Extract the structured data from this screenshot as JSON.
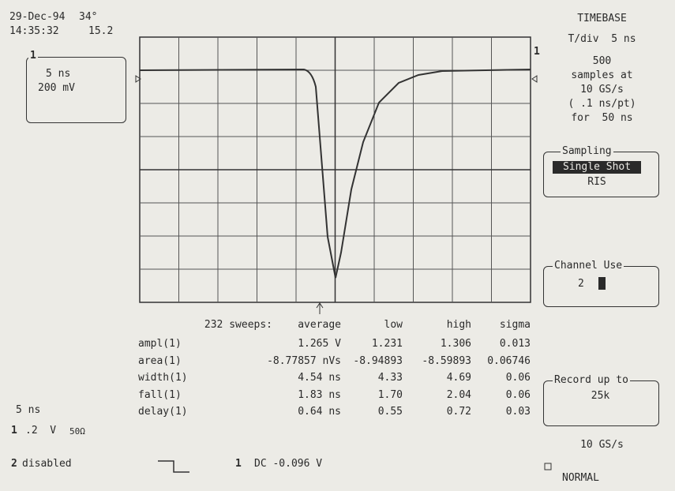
{
  "status": {
    "date": "29-Dec-94",
    "temp": "34°",
    "time": "14:35:32",
    "temp2": "15.2"
  },
  "channel_box": {
    "label": "1",
    "timebase": "5 ns",
    "volts": "200 mV"
  },
  "timebase": {
    "title": "TIMEBASE",
    "tdiv": "T/div  5 ns",
    "samples": "500",
    "samples_at": "samples at",
    "rate": "10 GS/s",
    "per_pt": "( .1 ns/pt)",
    "duration": "for  50 ns"
  },
  "sampling": {
    "title": "Sampling",
    "options": [
      "Single Shot",
      "RIS"
    ]
  },
  "channel_use": {
    "title": "Channel Use",
    "value": "2"
  },
  "record": {
    "title": "Record up to",
    "value": "25k"
  },
  "rate": "10 GS/s",
  "mode": "NORMAL",
  "trace_marker": "1",
  "measurements": {
    "header": [
      "232 sweeps:",
      "average",
      "low",
      "high",
      "sigma"
    ],
    "rows": [
      [
        "ampl(1)",
        "1.265 V",
        "1.231",
        "1.306",
        "0.013"
      ],
      [
        "area(1)",
        "-8.77857 nVs",
        "-8.94893",
        "-8.59893",
        "0.06746"
      ],
      [
        "width(1)",
        "4.54 ns",
        "4.33",
        "4.69",
        "0.06"
      ],
      [
        "fall(1)",
        "1.83 ns",
        "1.70",
        "2.04",
        "0.06"
      ],
      [
        "delay(1)",
        "0.64 ns",
        "0.55",
        "0.72",
        "0.03"
      ]
    ]
  },
  "footer": {
    "timebase": "5 ns",
    "ch1": "1",
    "ch1_scale": ".2  V",
    "ch1_imp": "50Ω",
    "ch2": "2",
    "ch2_status": "disabled",
    "trigger_ch": "1",
    "trigger": "DC -0.096 V"
  }
}
